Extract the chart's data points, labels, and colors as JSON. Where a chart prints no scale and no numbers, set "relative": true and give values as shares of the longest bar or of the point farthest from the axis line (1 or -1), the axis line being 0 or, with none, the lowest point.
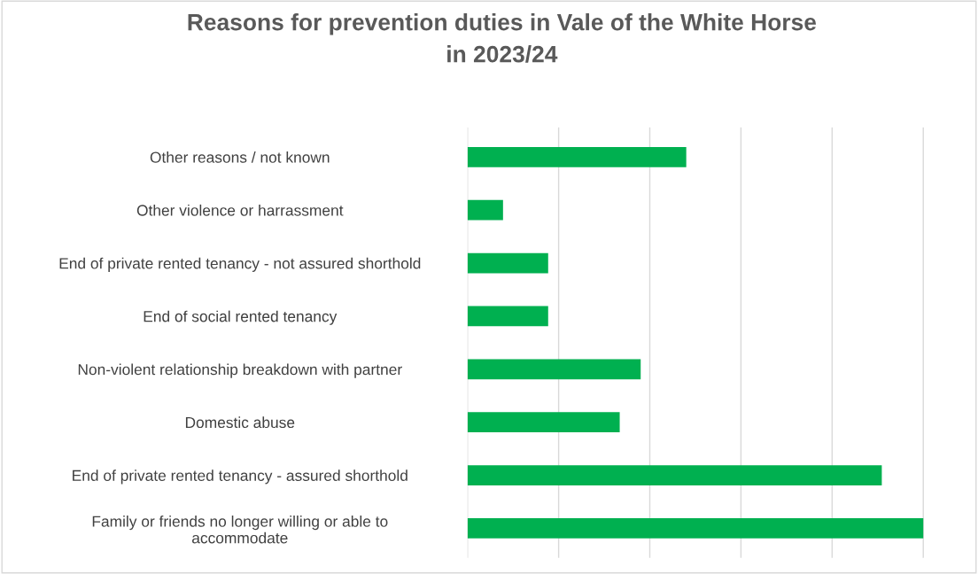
{
  "chart_data": {
    "type": "bar",
    "orientation": "horizontal",
    "relative": true,
    "title": "Reasons for prevention duties in Vale of the White Horse\nin 2023/24",
    "categories": [
      "Other reasons / not known",
      "Other violence or harrassment",
      "End of private rented tenancy - not assured shorthold",
      "End of social rented tenancy",
      "Non-violent relationship breakdown with partner",
      "Domestic abuse",
      "End of private rented tenancy - assured shorthold",
      "Family or friends no longer willing or able to\naccommodate"
    ],
    "values": [
      0.48,
      0.078,
      0.177,
      0.177,
      0.38,
      0.334,
      0.909,
      1.0
    ],
    "color": "#00b050",
    "grid": "x",
    "tick_labels": "y"
  }
}
